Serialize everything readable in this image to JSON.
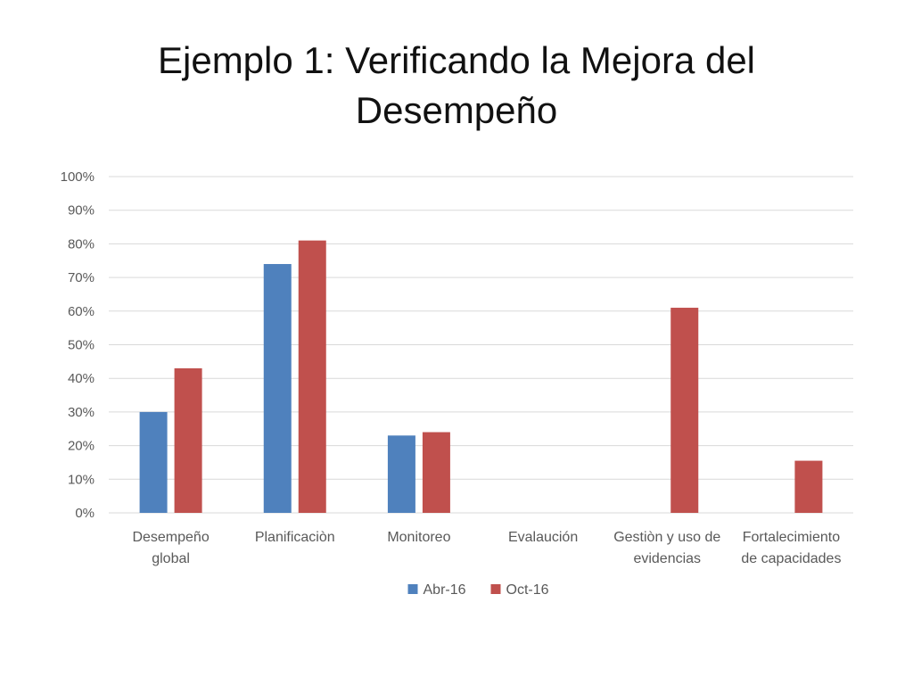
{
  "title_lines": [
    "Ejemplo 1: Verificando la Mejora del",
    "Desempeño"
  ],
  "chart_data": {
    "type": "bar",
    "categories": [
      [
        "Desempeño",
        "global"
      ],
      [
        "Planificaciòn"
      ],
      [
        "Monitoreo"
      ],
      [
        "Evalaución"
      ],
      [
        "Gestiòn y uso de",
        "evidencias"
      ],
      [
        "Fortalecimiento",
        "de capacidades"
      ]
    ],
    "series": [
      {
        "name": "Abr-16",
        "color": "#4f81bd",
        "values": [
          0.3,
          0.74,
          0.23,
          0,
          0,
          0
        ]
      },
      {
        "name": "Oct-16",
        "color": "#c0504d",
        "values": [
          0.43,
          0.81,
          0.24,
          0,
          0.61,
          0.155
        ]
      }
    ],
    "ylim": [
      0,
      1
    ],
    "yticks": [
      "0%",
      "10%",
      "20%",
      "30%",
      "40%",
      "50%",
      "60%",
      "70%",
      "80%",
      "90%",
      "100%"
    ],
    "grid": true,
    "legend": "bottom"
  }
}
